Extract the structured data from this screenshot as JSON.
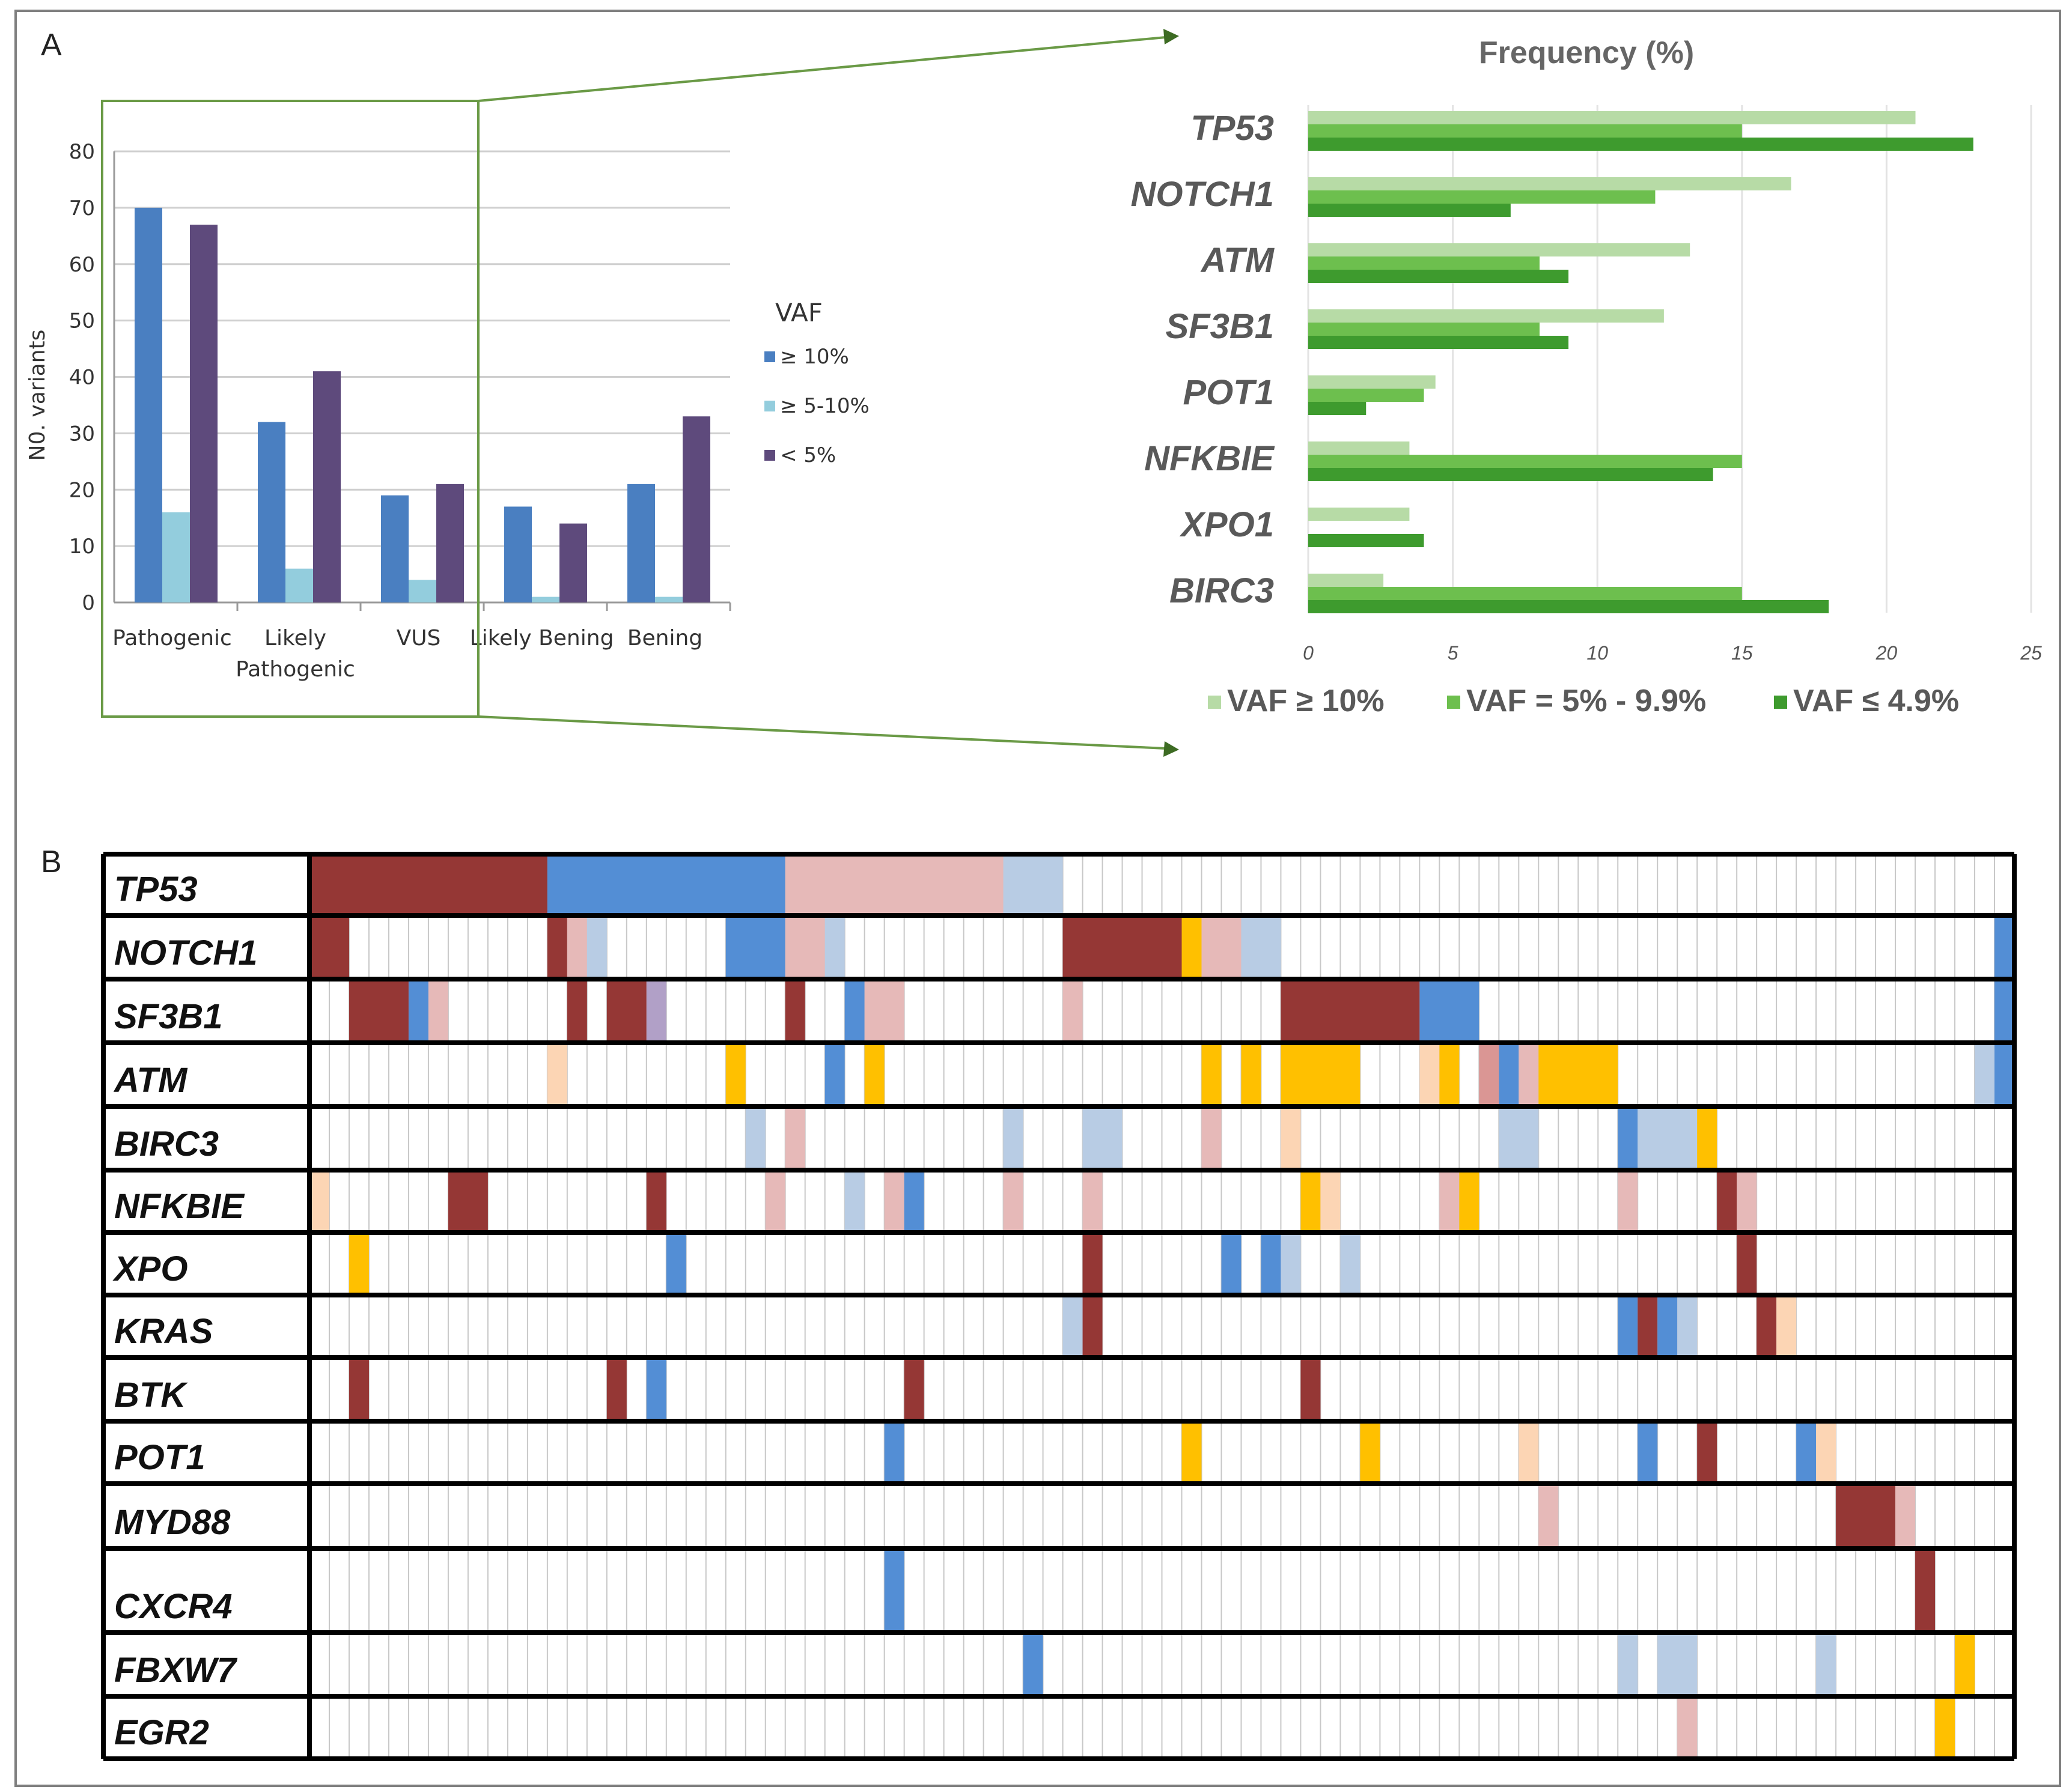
{
  "panel_labels": {
    "a": "A",
    "b": "B"
  },
  "colors": {
    "bar_ge10": "#4a7fc1",
    "bar_5_10": "#93cddd",
    "bar_lt5": "#5e4a7c",
    "green_light": "#b7dba6",
    "green_mid": "#6dbf4e",
    "green_dark": "#3e9b2e",
    "oncoprint_dark_red": "#953735",
    "oncoprint_blue": "#538ed5",
    "oncoprint_pink": "#e6b9b8",
    "oncoprint_light_blue": "#b8cce4",
    "oncoprint_orange": "#fcd5b4",
    "oncoprint_yellow": "#ffc000",
    "oncoprint_purple": "#b1a0c7",
    "oncoprint_rose": "#da9694"
  },
  "chart_data": [
    {
      "type": "bar",
      "title": "",
      "xlabel": "",
      "ylabel": "N0. variants",
      "ylim": [
        0,
        80
      ],
      "yticks": [
        "0",
        "10",
        "20",
        "30",
        "40",
        "50",
        "60",
        "70",
        "80"
      ],
      "categories": [
        "Pathogenic",
        "Likely Pathogenic",
        "VUS",
        "Likely Bening",
        "Bening"
      ],
      "category_lines": [
        [
          "Pathogenic"
        ],
        [
          "Likely",
          "Pathogenic"
        ],
        [
          "VUS"
        ],
        [
          "Likely Bening"
        ],
        [
          "Bening"
        ]
      ],
      "legend_title": "VAF",
      "legend_labels": [
        "≥ 10%",
        "≥ 5-10%",
        "< 5%"
      ],
      "series": [
        {
          "name": "≥ 10%",
          "values": [
            70,
            32,
            19,
            17,
            21
          ]
        },
        {
          "name": "≥ 5-10%",
          "values": [
            16,
            6,
            4,
            1,
            1
          ]
        },
        {
          "name": "< 5%",
          "values": [
            67,
            41,
            21,
            14,
            33
          ]
        }
      ]
    },
    {
      "type": "bar",
      "orientation": "horizontal",
      "title": "Frequency (%)",
      "xlim": [
        0,
        25
      ],
      "xticks": [
        "0",
        "5",
        "10",
        "15",
        "20",
        "25"
      ],
      "categories": [
        "TP53",
        "NOTCH1",
        "ATM",
        "SF3B1",
        "POT1",
        "NFKBIE",
        "XPO1",
        "BIRC3"
      ],
      "legend_labels": [
        "VAF ≥ 10%",
        "VAF = 5% - 9.9%",
        "VAF ≤ 4.9%"
      ],
      "series": [
        {
          "name": "VAF ≥ 10%",
          "values": [
            21,
            16.7,
            13.2,
            12.3,
            4.4,
            3.5,
            3.5,
            2.6
          ]
        },
        {
          "name": "VAF = 5% - 9.9%",
          "values": [
            15,
            12,
            8,
            8,
            4,
            15,
            0,
            15
          ]
        },
        {
          "name": "VAF ≤ 4.9%",
          "values": [
            23,
            7,
            9,
            9,
            2,
            14,
            4,
            18
          ]
        }
      ]
    },
    {
      "type": "heatmap",
      "title": "",
      "n_columns": 86,
      "color_key": {
        "R": "dark red",
        "B": "blue",
        "P": "pink",
        "L": "light blue",
        "O": "light orange",
        "Y": "yellow",
        "V": "lavender",
        "S": "rose"
      },
      "rows": [
        {
          "gene": "TP53",
          "segments": [
            [
              0,
              11,
              "R"
            ],
            [
              12,
              23,
              "B"
            ],
            [
              24,
              34,
              "P"
            ],
            [
              35,
              37,
              "L"
            ]
          ]
        },
        {
          "gene": "NOTCH1",
          "segments": [
            [
              0,
              1,
              "R"
            ],
            [
              12,
              12,
              "R"
            ],
            [
              13,
              13,
              "P"
            ],
            [
              14,
              14,
              "L"
            ],
            [
              21,
              23,
              "B"
            ],
            [
              24,
              25,
              "P"
            ],
            [
              26,
              26,
              "L"
            ],
            [
              38,
              43,
              "R"
            ],
            [
              44,
              44,
              "Y"
            ],
            [
              45,
              46,
              "P"
            ],
            [
              47,
              48,
              "L"
            ],
            [
              85,
              85,
              "B"
            ]
          ]
        },
        {
          "gene": "SF3B1",
          "segments": [
            [
              2,
              4,
              "R"
            ],
            [
              5,
              5,
              "B"
            ],
            [
              6,
              6,
              "P"
            ],
            [
              13,
              13,
              "R"
            ],
            [
              15,
              16,
              "R"
            ],
            [
              17,
              17,
              "V"
            ],
            [
              24,
              24,
              "R"
            ],
            [
              27,
              27,
              "B"
            ],
            [
              28,
              29,
              "P"
            ],
            [
              38,
              38,
              "P"
            ],
            [
              49,
              55,
              "R"
            ],
            [
              56,
              58,
              "B"
            ],
            [
              85,
              85,
              "B"
            ]
          ]
        },
        {
          "gene": "ATM",
          "segments": [
            [
              12,
              12,
              "O"
            ],
            [
              21,
              21,
              "Y"
            ],
            [
              26,
              26,
              "B"
            ],
            [
              28,
              28,
              "Y"
            ],
            [
              45,
              45,
              "Y"
            ],
            [
              47,
              47,
              "Y"
            ],
            [
              49,
              52,
              "Y"
            ],
            [
              56,
              56,
              "O"
            ],
            [
              57,
              57,
              "Y"
            ],
            [
              59,
              59,
              "S"
            ],
            [
              60,
              60,
              "B"
            ],
            [
              61,
              61,
              "P"
            ],
            [
              62,
              65,
              "Y"
            ],
            [
              84,
              84,
              "L"
            ],
            [
              85,
              85,
              "B"
            ]
          ]
        },
        {
          "gene": "BIRC3",
          "segments": [
            [
              22,
              22,
              "L"
            ],
            [
              24,
              24,
              "P"
            ],
            [
              35,
              35,
              "L"
            ],
            [
              39,
              40,
              "L"
            ],
            [
              45,
              45,
              "P"
            ],
            [
              49,
              49,
              "O"
            ],
            [
              60,
              61,
              "L"
            ],
            [
              66,
              66,
              "B"
            ],
            [
              67,
              69,
              "L"
            ],
            [
              70,
              70,
              "Y"
            ]
          ]
        },
        {
          "gene": "NFKBIE",
          "segments": [
            [
              0,
              0,
              "O"
            ],
            [
              7,
              8,
              "R"
            ],
            [
              17,
              17,
              "R"
            ],
            [
              23,
              23,
              "P"
            ],
            [
              27,
              27,
              "L"
            ],
            [
              29,
              29,
              "P"
            ],
            [
              30,
              30,
              "B"
            ],
            [
              35,
              35,
              "P"
            ],
            [
              39,
              39,
              "P"
            ],
            [
              50,
              50,
              "Y"
            ],
            [
              51,
              51,
              "O"
            ],
            [
              57,
              57,
              "P"
            ],
            [
              58,
              58,
              "Y"
            ],
            [
              66,
              66,
              "P"
            ],
            [
              71,
              71,
              "R"
            ],
            [
              72,
              72,
              "P"
            ]
          ]
        },
        {
          "gene": "XPO",
          "segments": [
            [
              2,
              2,
              "Y"
            ],
            [
              18,
              18,
              "B"
            ],
            [
              39,
              39,
              "R"
            ],
            [
              46,
              46,
              "B"
            ],
            [
              48,
              48,
              "B"
            ],
            [
              49,
              49,
              "L"
            ],
            [
              52,
              52,
              "L"
            ],
            [
              72,
              72,
              "R"
            ]
          ]
        },
        {
          "gene": "KRAS",
          "segments": [
            [
              38,
              38,
              "L"
            ],
            [
              39,
              39,
              "R"
            ],
            [
              66,
              66,
              "B"
            ],
            [
              67,
              67,
              "R"
            ],
            [
              68,
              68,
              "B"
            ],
            [
              69,
              69,
              "L"
            ],
            [
              73,
              73,
              "R"
            ],
            [
              74,
              74,
              "O"
            ]
          ]
        },
        {
          "gene": "BTK",
          "segments": [
            [
              2,
              2,
              "R"
            ],
            [
              15,
              15,
              "R"
            ],
            [
              17,
              17,
              "B"
            ],
            [
              30,
              30,
              "R"
            ],
            [
              50,
              50,
              "R"
            ]
          ]
        },
        {
          "gene": "POT1",
          "segments": [
            [
              29,
              29,
              "B"
            ],
            [
              44,
              44,
              "Y"
            ],
            [
              53,
              53,
              "Y"
            ],
            [
              61,
              61,
              "O"
            ],
            [
              67,
              67,
              "B"
            ],
            [
              70,
              70,
              "R"
            ],
            [
              75,
              75,
              "B"
            ],
            [
              76,
              76,
              "O"
            ]
          ]
        },
        {
          "gene": "MYD88",
          "segments": [
            [
              62,
              62,
              "P"
            ],
            [
              77,
              79,
              "R"
            ],
            [
              80,
              80,
              "P"
            ]
          ]
        },
        {
          "gene": "CXCR4",
          "segments": [
            [
              29,
              29,
              "B"
            ],
            [
              81,
              81,
              "R"
            ]
          ]
        },
        {
          "gene": "FBXW7",
          "segments": [
            [
              36,
              36,
              "B"
            ],
            [
              66,
              66,
              "L"
            ],
            [
              68,
              69,
              "L"
            ],
            [
              76,
              76,
              "L"
            ],
            [
              83,
              83,
              "Y"
            ]
          ]
        },
        {
          "gene": "EGR2",
          "segments": [
            [
              69,
              69,
              "P"
            ],
            [
              82,
              82,
              "Y"
            ]
          ]
        }
      ]
    }
  ]
}
